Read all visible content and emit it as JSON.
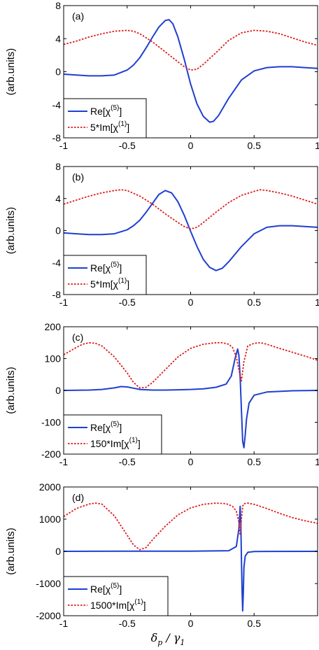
{
  "figure": {
    "xlabel_main": "δ",
    "xlabel_sub1": "p",
    "xlabel_mid": " / γ",
    "xlabel_sub2": "1"
  },
  "colors": {
    "solid": "#1f3fd1",
    "dotted": "#e01a1a"
  },
  "chart_data": [
    {
      "type": "line",
      "panel_label": "(a)",
      "ylabel": "(arb.units)",
      "xlim": [
        -1,
        1
      ],
      "ylim": [
        -8,
        8
      ],
      "xticks": [
        -1,
        -0.5,
        0,
        0.5,
        1
      ],
      "xtick_labels": [
        "-1",
        "-0.5",
        "0",
        "0.5",
        "1"
      ],
      "yticks": [
        -8,
        -4,
        0,
        4,
        8
      ],
      "ytick_labels": [
        "-8",
        "-4",
        "0",
        "4",
        "8"
      ],
      "legend": {
        "position": "lower-left",
        "entry1": "Re[χ",
        "entry1_sup": "(5)",
        "entry1_end": "]",
        "entry2": "5*Im[χ",
        "entry2_sup": "(1)",
        "entry2_end": "]"
      },
      "series": [
        {
          "name": "Re[χ(5)]",
          "style": "solid",
          "x": [
            -1,
            -0.9,
            -0.8,
            -0.7,
            -0.6,
            -0.5,
            -0.45,
            -0.4,
            -0.35,
            -0.3,
            -0.25,
            -0.2,
            -0.17,
            -0.14,
            -0.1,
            -0.05,
            0,
            0.05,
            0.1,
            0.15,
            0.18,
            0.22,
            0.3,
            0.4,
            0.5,
            0.6,
            0.7,
            0.8,
            0.9,
            1
          ],
          "y": [
            -0.3,
            -0.4,
            -0.5,
            -0.5,
            -0.4,
            0.2,
            0.8,
            1.7,
            2.9,
            4.2,
            5.4,
            6.2,
            6.3,
            5.8,
            4.2,
            1.5,
            -1.5,
            -3.9,
            -5.4,
            -6.1,
            -6.0,
            -5.3,
            -3.2,
            -1.0,
            0.1,
            0.5,
            0.6,
            0.6,
            0.5,
            0.4
          ]
        },
        {
          "name": "5*Im[χ(1)]",
          "style": "dotted",
          "x": [
            -1,
            -0.9,
            -0.8,
            -0.7,
            -0.6,
            -0.5,
            -0.45,
            -0.4,
            -0.3,
            -0.2,
            -0.1,
            -0.05,
            0,
            0.05,
            0.1,
            0.2,
            0.3,
            0.4,
            0.5,
            0.6,
            0.7,
            0.8,
            0.9,
            1
          ],
          "y": [
            3.3,
            3.7,
            4.2,
            4.6,
            4.9,
            5.0,
            4.9,
            4.6,
            3.6,
            2.4,
            1.2,
            0.6,
            0.2,
            0.3,
            0.9,
            2.3,
            3.8,
            4.7,
            5.0,
            4.9,
            4.6,
            4.1,
            3.6,
            3.2
          ]
        }
      ]
    },
    {
      "type": "line",
      "panel_label": "(b)",
      "ylabel": "(arb.units)",
      "xlim": [
        -1,
        1
      ],
      "ylim": [
        -8,
        8
      ],
      "xticks": [
        -1,
        -0.5,
        0,
        0.5,
        1
      ],
      "xtick_labels": [
        "-1",
        "-0.5",
        "0",
        "0.5",
        "1"
      ],
      "yticks": [
        -8,
        -4,
        0,
        4,
        8
      ],
      "ytick_labels": [
        "-8",
        "-4",
        "0",
        "4",
        "8"
      ],
      "legend": {
        "position": "lower-left",
        "entry1": "Re[χ",
        "entry1_sup": "(5)",
        "entry1_end": "]",
        "entry2": "5*Im[χ",
        "entry2_sup": "(1)",
        "entry2_end": "]"
      },
      "series": [
        {
          "name": "Re[χ(5)]",
          "style": "solid",
          "x": [
            -1,
            -0.9,
            -0.8,
            -0.7,
            -0.6,
            -0.5,
            -0.45,
            -0.4,
            -0.35,
            -0.3,
            -0.25,
            -0.2,
            -0.15,
            -0.1,
            -0.05,
            0,
            0.05,
            0.1,
            0.15,
            0.2,
            0.25,
            0.3,
            0.4,
            0.5,
            0.6,
            0.7,
            0.8,
            0.9,
            1
          ],
          "y": [
            -0.3,
            -0.4,
            -0.5,
            -0.5,
            -0.4,
            0.1,
            0.6,
            1.3,
            2.3,
            3.4,
            4.5,
            5.0,
            4.7,
            3.6,
            1.9,
            -0.1,
            -2.0,
            -3.6,
            -4.6,
            -5.0,
            -4.7,
            -3.9,
            -2.0,
            -0.4,
            0.4,
            0.6,
            0.6,
            0.5,
            0.4
          ]
        },
        {
          "name": "5*Im[χ(1)]",
          "style": "dotted",
          "x": [
            -1,
            -0.9,
            -0.8,
            -0.7,
            -0.6,
            -0.55,
            -0.5,
            -0.4,
            -0.3,
            -0.2,
            -0.1,
            -0.05,
            0,
            0.05,
            0.1,
            0.2,
            0.3,
            0.4,
            0.5,
            0.55,
            0.6,
            0.7,
            0.8,
            0.9,
            1
          ],
          "y": [
            3.3,
            3.8,
            4.3,
            4.7,
            5.0,
            5.1,
            5.0,
            4.3,
            3.3,
            2.1,
            1.0,
            0.5,
            0.2,
            0.4,
            1.0,
            2.3,
            3.5,
            4.4,
            4.9,
            5.1,
            5.0,
            4.7,
            4.3,
            3.8,
            3.3
          ]
        }
      ]
    },
    {
      "type": "line",
      "panel_label": "(c)",
      "ylabel": "(arb.units)",
      "xlim": [
        -1,
        1
      ],
      "ylim": [
        -200,
        200
      ],
      "xticks": [
        -1,
        -0.5,
        0,
        0.5,
        1
      ],
      "xtick_labels": [
        "-1",
        "-0.5",
        "0",
        "0.5",
        "1"
      ],
      "yticks": [
        -200,
        -100,
        0,
        100,
        200
      ],
      "ytick_labels": [
        "-200",
        "-100",
        "0",
        "100",
        "200"
      ],
      "legend": {
        "position": "lower-left",
        "entry1": "Re[χ",
        "entry1_sup": "(5)",
        "entry1_end": "]",
        "entry2": "150*Im[χ",
        "entry2_sup": "(1)",
        "entry2_end": "]"
      },
      "series": [
        {
          "name": "Re[χ(5)]",
          "style": "solid",
          "x": [
            -1,
            -0.8,
            -0.7,
            -0.6,
            -0.55,
            -0.5,
            -0.45,
            -0.4,
            -0.3,
            -0.2,
            -0.1,
            0,
            0.1,
            0.2,
            0.28,
            0.32,
            0.35,
            0.37,
            0.38,
            0.39,
            0.4,
            0.41,
            0.42,
            0.43,
            0.44,
            0.46,
            0.5,
            0.6,
            0.8,
            1
          ],
          "y": [
            0,
            1,
            3,
            8,
            12,
            11,
            7,
            3,
            1,
            1,
            2,
            3,
            5,
            10,
            20,
            45,
            100,
            130,
            110,
            40,
            -60,
            -160,
            -180,
            -140,
            -90,
            -40,
            -15,
            -5,
            -1,
            0
          ]
        },
        {
          "name": "150*Im[χ(1)]",
          "style": "dotted",
          "x": [
            -1,
            -0.9,
            -0.85,
            -0.8,
            -0.75,
            -0.7,
            -0.6,
            -0.5,
            -0.45,
            -0.4,
            -0.35,
            -0.3,
            -0.2,
            -0.1,
            0,
            0.1,
            0.2,
            0.25,
            0.3,
            0.33,
            0.36,
            0.38,
            0.4,
            0.42,
            0.45,
            0.5,
            0.55,
            0.6,
            0.7,
            0.8,
            0.9,
            1
          ],
          "y": [
            112,
            135,
            145,
            150,
            148,
            140,
            105,
            55,
            25,
            8,
            10,
            25,
            65,
            105,
            132,
            145,
            150,
            150,
            145,
            135,
            105,
            65,
            30,
            90,
            140,
            148,
            150,
            145,
            132,
            120,
            108,
            95
          ]
        }
      ]
    },
    {
      "type": "line",
      "panel_label": "(d)",
      "ylabel": "(arb.units)",
      "xlim": [
        -1,
        1
      ],
      "ylim": [
        -2000,
        2000
      ],
      "xticks": [
        -1,
        -0.5,
        0,
        0.5
      ],
      "xtick_labels": [
        "-1",
        "-0.5",
        "0",
        "0.5"
      ],
      "yticks": [
        -2000,
        -1000,
        0,
        1000,
        2000
      ],
      "ytick_labels": [
        "-2000",
        "-1000",
        "0",
        "1000",
        "2000"
      ],
      "legend": {
        "position": "lower-left",
        "entry1": "Re[χ",
        "entry1_sup": "(5)",
        "entry1_end": "]",
        "entry2": "1500*Im[χ",
        "entry2_sup": "(1)",
        "entry2_end": "]"
      },
      "series": [
        {
          "name": "Re[χ(5)]",
          "style": "solid",
          "x": [
            -1,
            -0.5,
            0,
            0.3,
            0.36,
            0.38,
            0.39,
            0.395,
            0.4,
            0.405,
            0.41,
            0.415,
            0.42,
            0.43,
            0.45,
            0.5,
            1
          ],
          "y": [
            0,
            5,
            5,
            20,
            150,
            700,
            1400,
            900,
            -200,
            -1200,
            -1850,
            -1300,
            -500,
            -150,
            -30,
            -5,
            0
          ]
        },
        {
          "name": "1500*Im[χ(1)]",
          "style": "dotted",
          "x": [
            -1,
            -0.9,
            -0.8,
            -0.75,
            -0.7,
            -0.6,
            -0.5,
            -0.45,
            -0.4,
            -0.35,
            -0.3,
            -0.2,
            -0.1,
            0,
            0.1,
            0.2,
            0.28,
            0.33,
            0.36,
            0.38,
            0.39,
            0.4,
            0.41,
            0.42,
            0.45,
            0.5,
            0.6,
            0.7,
            0.8,
            0.9,
            1
          ],
          "y": [
            1080,
            1330,
            1470,
            1500,
            1470,
            1100,
            500,
            200,
            50,
            120,
            360,
            780,
            1130,
            1350,
            1460,
            1500,
            1480,
            1400,
            1250,
            900,
            500,
            1000,
            1400,
            1480,
            1500,
            1460,
            1330,
            1180,
            1050,
            950,
            870
          ]
        }
      ]
    }
  ]
}
